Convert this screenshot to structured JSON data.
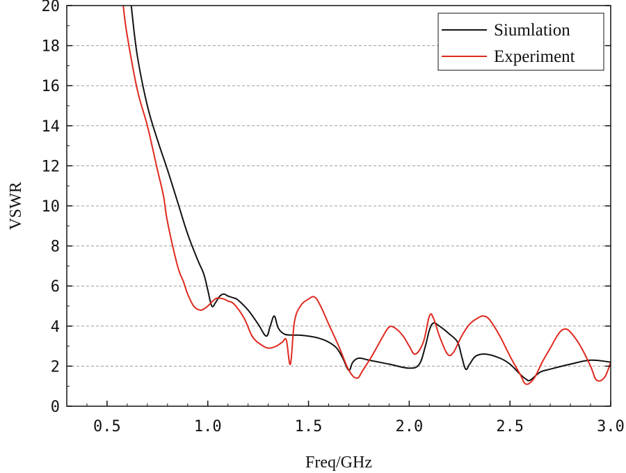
{
  "chart_data": {
    "type": "line",
    "title": "",
    "xlabel": "Freq/GHz",
    "ylabel": "VSWR",
    "xlim": [
      0.3,
      3.0
    ],
    "ylim": [
      0,
      20
    ],
    "xticks": [
      0.5,
      1.0,
      1.5,
      2.0,
      2.5,
      3.0
    ],
    "xtick_labels": [
      "0.5",
      "1.0",
      "1.5",
      "2.0",
      "2.5",
      "3.0"
    ],
    "yticks": [
      0,
      2,
      4,
      6,
      8,
      10,
      12,
      14,
      16,
      18,
      20
    ],
    "ytick_labels": [
      "0",
      "2",
      "4",
      "6",
      "8",
      "10",
      "12",
      "14",
      "16",
      "18",
      "20"
    ],
    "grid": "horizontal-dashed",
    "legend_position": "top-right",
    "series": [
      {
        "name": "Siumlation",
        "color": "#111111",
        "x": [
          0.62,
          0.65,
          0.7,
          0.75,
          0.8,
          0.85,
          0.9,
          0.95,
          0.98,
          1.0,
          1.02,
          1.04,
          1.06,
          1.08,
          1.1,
          1.13,
          1.15,
          1.2,
          1.25,
          1.29,
          1.31,
          1.33,
          1.35,
          1.38,
          1.42,
          1.45,
          1.5,
          1.55,
          1.6,
          1.64,
          1.67,
          1.7,
          1.72,
          1.75,
          1.8,
          1.9,
          2.0,
          2.05,
          2.08,
          2.1,
          2.12,
          2.15,
          2.2,
          2.24,
          2.26,
          2.28,
          2.3,
          2.33,
          2.38,
          2.45,
          2.5,
          2.55,
          2.58,
          2.6,
          2.65,
          2.7,
          2.8,
          2.9,
          3.0
        ],
        "y": [
          20.0,
          17.5,
          15.0,
          13.3,
          11.8,
          10.2,
          8.6,
          7.3,
          6.6,
          5.8,
          5.0,
          5.2,
          5.5,
          5.6,
          5.5,
          5.4,
          5.3,
          4.8,
          4.1,
          3.5,
          4.0,
          4.5,
          3.9,
          3.6,
          3.55,
          3.55,
          3.5,
          3.4,
          3.2,
          2.9,
          2.4,
          1.8,
          2.2,
          2.4,
          2.3,
          2.1,
          1.9,
          2.1,
          3.0,
          3.8,
          4.15,
          4.0,
          3.6,
          3.2,
          2.5,
          1.85,
          2.1,
          2.5,
          2.6,
          2.4,
          2.1,
          1.6,
          1.35,
          1.3,
          1.7,
          1.85,
          2.1,
          2.3,
          2.2
        ]
      },
      {
        "name": "Experiment",
        "color": "#e0281e",
        "x": [
          0.58,
          0.6,
          0.65,
          0.7,
          0.75,
          0.78,
          0.8,
          0.85,
          0.88,
          0.9,
          0.93,
          0.96,
          0.98,
          1.0,
          1.03,
          1.05,
          1.08,
          1.1,
          1.13,
          1.18,
          1.22,
          1.26,
          1.3,
          1.34,
          1.37,
          1.39,
          1.41,
          1.43,
          1.46,
          1.5,
          1.53,
          1.56,
          1.6,
          1.65,
          1.7,
          1.74,
          1.77,
          1.82,
          1.87,
          1.9,
          1.93,
          1.97,
          2.0,
          2.03,
          2.07,
          2.1,
          2.12,
          2.15,
          2.19,
          2.22,
          2.26,
          2.3,
          2.34,
          2.37,
          2.4,
          2.45,
          2.5,
          2.55,
          2.58,
          2.62,
          2.66,
          2.7,
          2.74,
          2.77,
          2.8,
          2.85,
          2.9,
          2.93,
          2.97,
          3.0
        ],
        "y": [
          20.0,
          18.5,
          15.8,
          14.0,
          11.8,
          10.5,
          9.2,
          7.0,
          6.2,
          5.6,
          5.0,
          4.8,
          4.85,
          5.0,
          5.3,
          5.4,
          5.35,
          5.25,
          5.1,
          4.4,
          3.5,
          3.1,
          2.9,
          3.0,
          3.2,
          3.3,
          2.1,
          4.2,
          5.0,
          5.35,
          5.45,
          5.0,
          4.1,
          3.0,
          1.8,
          1.4,
          1.8,
          2.6,
          3.5,
          3.95,
          3.9,
          3.5,
          3.0,
          2.6,
          3.2,
          4.5,
          4.4,
          3.5,
          2.6,
          2.7,
          3.5,
          4.1,
          4.4,
          4.5,
          4.3,
          3.5,
          2.5,
          1.6,
          1.1,
          1.4,
          2.2,
          2.9,
          3.6,
          3.85,
          3.7,
          3.0,
          2.0,
          1.3,
          1.45,
          2.2
        ]
      }
    ]
  }
}
